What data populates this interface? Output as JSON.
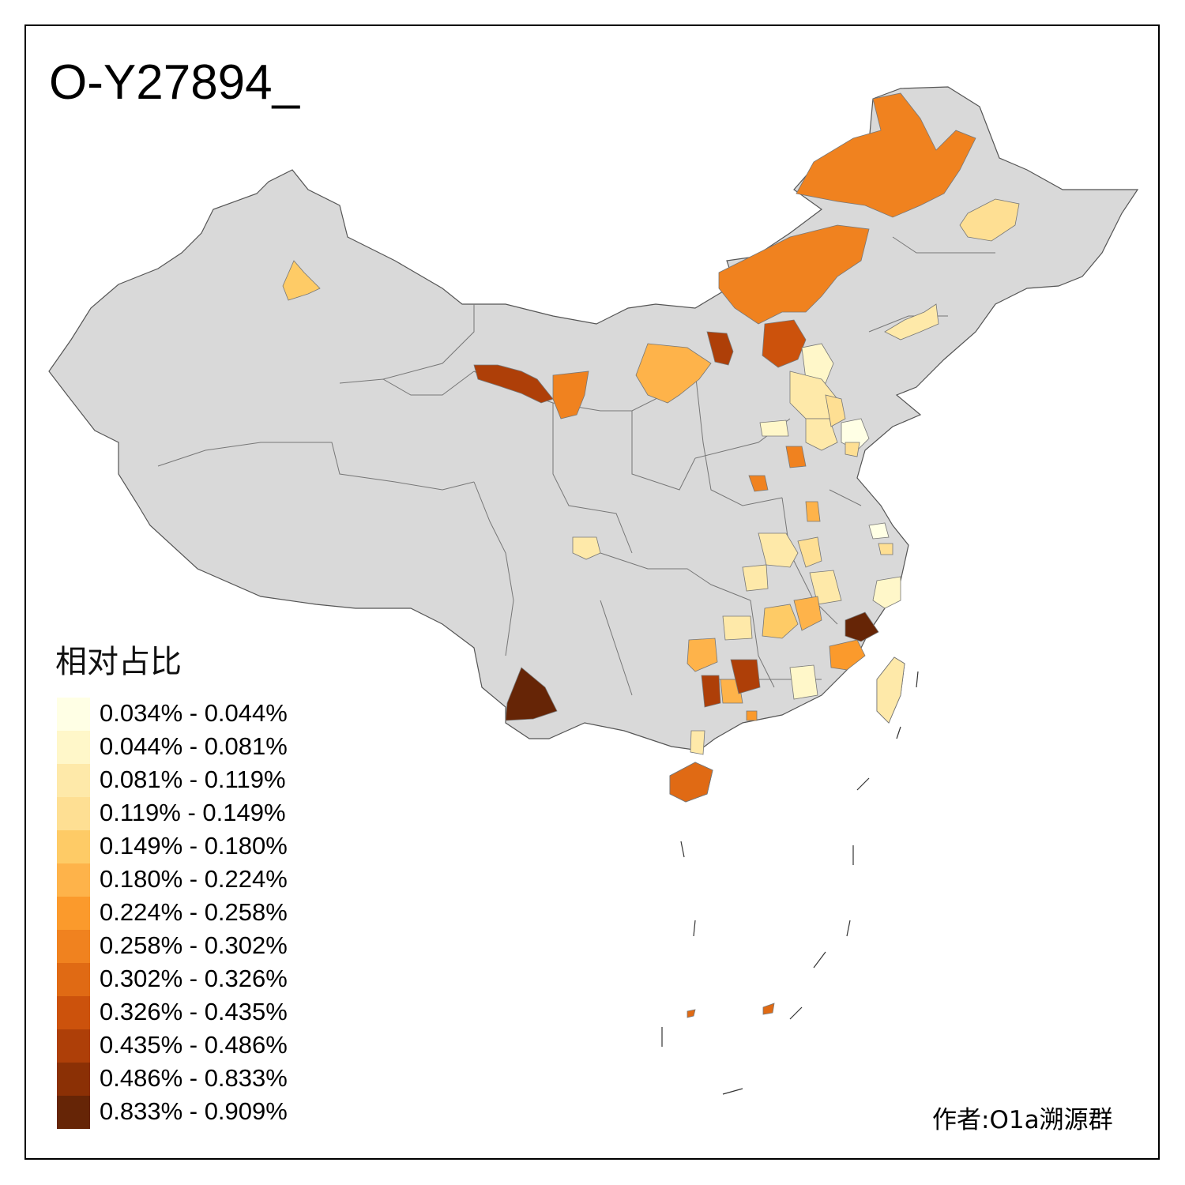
{
  "title": "O-Y27894_",
  "legend": {
    "title": "相对占比",
    "items": [
      {
        "label": "0.034% - 0.044%",
        "color": "#ffffe5"
      },
      {
        "label": "0.044% - 0.081%",
        "color": "#fff7c9"
      },
      {
        "label": "0.081% - 0.119%",
        "color": "#fee9a9"
      },
      {
        "label": "0.119% - 0.149%",
        "color": "#fedf93"
      },
      {
        "label": "0.149% - 0.180%",
        "color": "#fecb66"
      },
      {
        "label": "0.180% - 0.224%",
        "color": "#feb34a"
      },
      {
        "label": "0.224% - 0.258%",
        "color": "#fb9a2c"
      },
      {
        "label": "0.258% - 0.302%",
        "color": "#f0821f"
      },
      {
        "label": "0.302% - 0.326%",
        "color": "#e06a14"
      },
      {
        "label": "0.326% - 0.435%",
        "color": "#cc520c"
      },
      {
        "label": "0.435% - 0.486%",
        "color": "#ae3f08"
      },
      {
        "label": "0.486% - 0.833%",
        "color": "#8b3005"
      },
      {
        "label": "0.833% - 0.909%",
        "color": "#662506"
      }
    ]
  },
  "credit": "作者:O1a溯源群",
  "colors": {
    "base_region": "#d9d9d9",
    "border": "#555555",
    "frame": "#000000"
  }
}
